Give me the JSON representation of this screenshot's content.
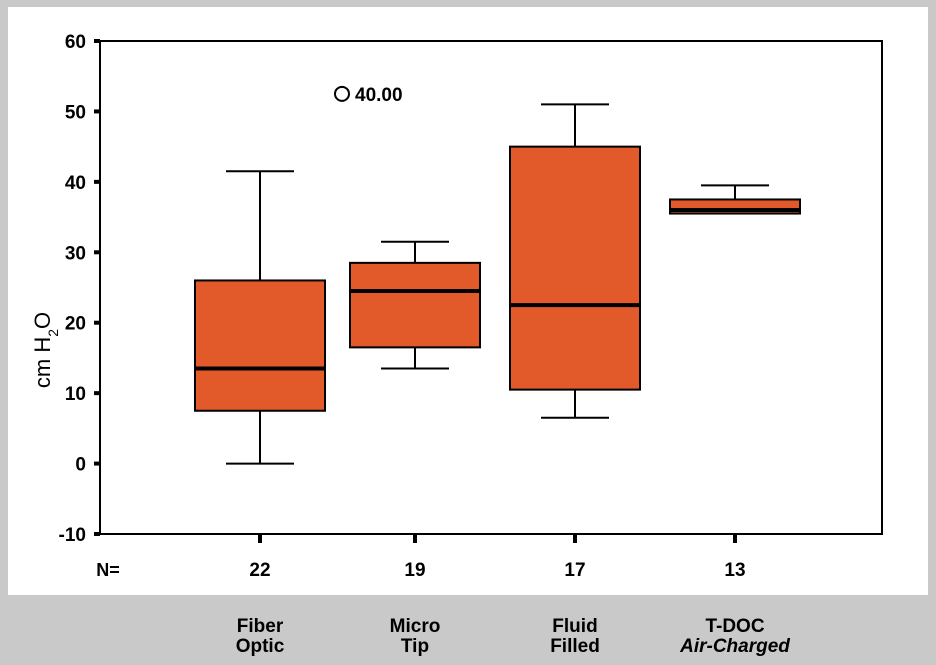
{
  "chart_data": {
    "type": "boxplot",
    "ylabel_main": "cm H",
    "ylabel_sub": "2",
    "ylabel_end": "O",
    "ylim": [
      -10,
      60
    ],
    "yticks": [
      -10,
      0,
      10,
      20,
      30,
      40,
      50,
      60
    ],
    "n_label": "N=",
    "categories": [
      {
        "line1": "Fiber",
        "line2": "Optic",
        "italic2": false
      },
      {
        "line1": "Micro",
        "line2": "Tip",
        "italic2": false
      },
      {
        "line1": "Fluid",
        "line2": "Filled",
        "italic2": false
      },
      {
        "line1": "T-DOC",
        "line2": "Air-Charged",
        "italic2": true
      }
    ],
    "n_values": [
      "22",
      "19",
      "17",
      "13"
    ],
    "boxes": [
      {
        "whisker_low": 0,
        "q1": 7.5,
        "median": 13.5,
        "q3": 26,
        "whisker_high": 41.5
      },
      {
        "whisker_low": 13.5,
        "q1": 16.5,
        "median": 24.5,
        "q3": 28.5,
        "whisker_high": 31.5
      },
      {
        "whisker_low": 6.5,
        "q1": 10.5,
        "median": 22.5,
        "q3": 45,
        "whisker_high": 51
      },
      {
        "whisker_low": 35.5,
        "q1": 35.5,
        "median": 36,
        "q3": 37.5,
        "whisker_high": 39.5
      }
    ],
    "outliers": [
      {
        "category_index": 1,
        "y": 52.5,
        "label": "40.00"
      }
    ],
    "colors": {
      "box_fill": "#e35a2a",
      "stroke": "#000000"
    }
  }
}
